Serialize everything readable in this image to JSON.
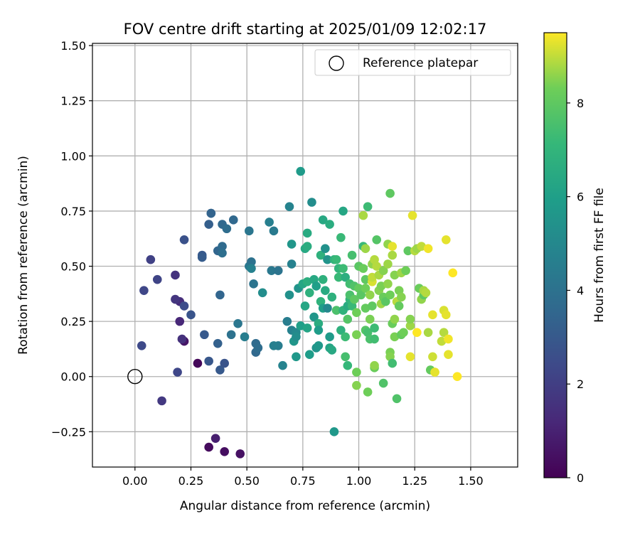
{
  "chart_data": {
    "type": "scatter",
    "title": "FOV centre drift starting at 2025/01/09 12:02:17",
    "xlabel": "Angular distance from reference (arcmin)",
    "ylabel": "Rotation from reference (arcmin)",
    "xlim": [
      -0.19,
      1.71
    ],
    "ylim": [
      -0.41,
      1.51
    ],
    "xticks": [
      0.0,
      0.25,
      0.5,
      0.75,
      1.0,
      1.25,
      1.5
    ],
    "xtick_labels": [
      "0.00",
      "0.25",
      "0.50",
      "0.75",
      "1.00",
      "1.25",
      "1.50"
    ],
    "yticks": [
      -0.25,
      0.0,
      0.25,
      0.5,
      0.75,
      1.0,
      1.25,
      1.5
    ],
    "ytick_labels": [
      "−0.25",
      "0.00",
      "0.25",
      "0.50",
      "0.75",
      "1.00",
      "1.25",
      "1.50"
    ],
    "grid": true,
    "legend": {
      "position": "top-right",
      "entries": [
        "Reference platepar"
      ]
    },
    "reference_point": {
      "x": 0.0,
      "y": 0.0
    },
    "colorbar": {
      "label": "Hours from first FF file",
      "range": [
        0,
        9.5
      ],
      "ticks": [
        0,
        2,
        4,
        6,
        8
      ],
      "tick_labels": [
        "0",
        "2",
        "4",
        "6",
        "8"
      ],
      "colormap": "viridis"
    },
    "points": [
      [
        0.28,
        0.06,
        0.2
      ],
      [
        0.33,
        -0.32,
        0.3
      ],
      [
        0.4,
        -0.34,
        0.4
      ],
      [
        0.47,
        -0.35,
        0.5
      ],
      [
        0.36,
        -0.28,
        0.9
      ],
      [
        0.22,
        0.16,
        0.6
      ],
      [
        0.2,
        0.25,
        1.2
      ],
      [
        0.21,
        0.17,
        1.5
      ],
      [
        0.12,
        -0.11,
        1.8
      ],
      [
        0.18,
        0.46,
        1.6
      ],
      [
        0.2,
        0.34,
        1.4
      ],
      [
        0.18,
        0.35,
        1.7
      ],
      [
        0.07,
        0.53,
        2.1
      ],
      [
        0.1,
        0.44,
        2.2
      ],
      [
        0.04,
        0.39,
        2.3
      ],
      [
        0.03,
        0.14,
        2.4
      ],
      [
        0.19,
        0.02,
        2.3
      ],
      [
        0.22,
        0.32,
        2.5
      ],
      [
        0.22,
        0.62,
        2.7
      ],
      [
        0.25,
        0.28,
        2.8
      ],
      [
        0.3,
        0.55,
        3.0
      ],
      [
        0.3,
        0.54,
        3.1
      ],
      [
        0.33,
        0.69,
        3.2
      ],
      [
        0.34,
        0.74,
        3.3
      ],
      [
        0.34,
        0.74,
        3.4
      ],
      [
        0.37,
        0.57,
        3.5
      ],
      [
        0.39,
        0.69,
        3.6
      ],
      [
        0.39,
        0.59,
        3.7
      ],
      [
        0.41,
        0.67,
        3.8
      ],
      [
        0.44,
        0.71,
        3.6
      ],
      [
        0.38,
        0.37,
        3.5
      ],
      [
        0.37,
        0.15,
        3.3
      ],
      [
        0.31,
        0.19,
        3.0
      ],
      [
        0.33,
        0.07,
        2.9
      ],
      [
        0.38,
        0.03,
        3.0
      ],
      [
        0.4,
        0.06,
        2.8
      ],
      [
        0.39,
        0.56,
        3.9
      ],
      [
        0.43,
        0.19,
        4.0
      ],
      [
        0.46,
        0.24,
        4.2
      ],
      [
        0.49,
        0.18,
        4.5
      ],
      [
        0.51,
        0.5,
        4.3
      ],
      [
        0.52,
        0.52,
        4.0
      ],
      [
        0.51,
        0.66,
        4.2
      ],
      [
        0.53,
        0.42,
        4.1
      ],
      [
        0.54,
        0.11,
        3.6
      ],
      [
        0.54,
        0.15,
        3.7
      ],
      [
        0.55,
        0.13,
        3.8
      ],
      [
        0.52,
        0.49,
        4.7
      ],
      [
        0.57,
        0.38,
        5.2
      ],
      [
        0.6,
        0.7,
        4.6
      ],
      [
        0.61,
        0.48,
        4.3
      ],
      [
        0.62,
        0.66,
        4.4
      ],
      [
        0.64,
        0.48,
        4.1
      ],
      [
        0.64,
        0.14,
        4.5
      ],
      [
        0.62,
        0.14,
        4.6
      ],
      [
        0.66,
        0.05,
        4.8
      ],
      [
        0.68,
        0.25,
        4.5
      ],
      [
        0.69,
        0.37,
        5.4
      ],
      [
        0.69,
        0.77,
        4.8
      ],
      [
        0.7,
        0.21,
        4.7
      ],
      [
        0.7,
        0.6,
        5.6
      ],
      [
        0.7,
        0.51,
        4.7
      ],
      [
        0.71,
        0.16,
        5.6
      ],
      [
        0.72,
        0.09,
        5.7
      ],
      [
        0.72,
        0.2,
        5.0
      ],
      [
        0.72,
        0.18,
        5.2
      ],
      [
        0.73,
        0.4,
        5.5
      ],
      [
        0.74,
        0.93,
        5.8
      ],
      [
        0.74,
        0.23,
        6.0
      ],
      [
        0.75,
        0.42,
        6.3
      ],
      [
        0.76,
        0.58,
        6.4
      ],
      [
        0.77,
        0.65,
        6.5
      ],
      [
        0.77,
        0.59,
        6.6
      ],
      [
        0.77,
        0.43,
        6.7
      ],
      [
        0.78,
        0.38,
        6.8
      ],
      [
        0.76,
        0.32,
        6.3
      ],
      [
        0.77,
        0.22,
        6.2
      ],
      [
        0.78,
        0.1,
        5.9
      ],
      [
        0.79,
        0.79,
        5.2
      ],
      [
        0.8,
        0.44,
        6.4
      ],
      [
        0.8,
        0.27,
        5.6
      ],
      [
        0.81,
        0.13,
        5.5
      ],
      [
        0.82,
        0.14,
        5.7
      ],
      [
        0.81,
        0.41,
        6.0
      ],
      [
        0.82,
        0.24,
        6.6
      ],
      [
        0.82,
        0.21,
        5.9
      ],
      [
        0.83,
        0.55,
        6.8
      ],
      [
        0.83,
        0.34,
        6.9
      ],
      [
        0.84,
        0.71,
        6.4
      ],
      [
        0.84,
        0.31,
        6.0
      ],
      [
        0.84,
        0.44,
        6.8
      ],
      [
        0.85,
        0.58,
        5.4
      ],
      [
        0.86,
        0.53,
        5.5
      ],
      [
        0.85,
        0.39,
        6.5
      ],
      [
        0.86,
        0.31,
        5.0
      ],
      [
        0.87,
        0.18,
        5.8
      ],
      [
        0.87,
        0.69,
        6.6
      ],
      [
        0.87,
        0.13,
        6.2
      ],
      [
        0.88,
        0.12,
        6.4
      ],
      [
        0.88,
        0.36,
        6.8
      ],
      [
        0.89,
        -0.25,
        5.7
      ],
      [
        0.89,
        0.53,
        6.9
      ],
      [
        0.9,
        0.53,
        7.2
      ],
      [
        0.9,
        0.3,
        7.6
      ],
      [
        0.91,
        0.49,
        7.0
      ],
      [
        0.91,
        0.45,
        7.2
      ],
      [
        0.92,
        0.21,
        6.8
      ],
      [
        0.92,
        0.63,
        7.2
      ],
      [
        0.93,
        0.75,
        6.3
      ],
      [
        0.93,
        0.49,
        7.3
      ],
      [
        0.93,
        0.3,
        6.9
      ],
      [
        0.94,
        0.18,
        7.3
      ],
      [
        0.94,
        0.09,
        7.5
      ],
      [
        0.94,
        0.45,
        6.7
      ],
      [
        0.95,
        0.05,
        7.1
      ],
      [
        0.95,
        0.32,
        6.5
      ],
      [
        0.95,
        0.26,
        7.8
      ],
      [
        0.96,
        0.35,
        7.0
      ],
      [
        0.96,
        0.42,
        7.4
      ],
      [
        0.96,
        0.37,
        7.6
      ],
      [
        0.97,
        0.55,
        7.5
      ],
      [
        0.97,
        0.32,
        7.2
      ],
      [
        0.98,
        0.41,
        7.7
      ],
      [
        0.98,
        0.35,
        8.0
      ],
      [
        0.99,
        0.19,
        8.4
      ],
      [
        0.99,
        0.29,
        8.3
      ],
      [
        0.99,
        -0.04,
        8.5
      ],
      [
        0.99,
        0.02,
        8.3
      ],
      [
        1.0,
        0.5,
        7.9
      ],
      [
        1.0,
        0.4,
        8.1
      ],
      [
        1.01,
        0.37,
        7.9
      ],
      [
        1.02,
        0.59,
        7.2
      ],
      [
        1.02,
        0.49,
        8.2
      ],
      [
        1.02,
        0.73,
        8.8
      ],
      [
        1.03,
        0.58,
        8.7
      ],
      [
        1.03,
        0.44,
        8.0
      ],
      [
        1.03,
        0.4,
        8.3
      ],
      [
        1.03,
        0.31,
        8.1
      ],
      [
        1.03,
        0.21,
        7.8
      ],
      [
        1.04,
        0.77,
        7.3
      ],
      [
        1.04,
        0.2,
        7.5
      ],
      [
        1.04,
        -0.07,
        8.3
      ],
      [
        1.05,
        0.26,
        8.4
      ],
      [
        1.05,
        0.17,
        7.6
      ],
      [
        1.05,
        0.37,
        8.6
      ],
      [
        1.06,
        0.43,
        9.2
      ],
      [
        1.06,
        0.45,
        9.0
      ],
      [
        1.06,
        0.51,
        8.6
      ],
      [
        1.06,
        0.32,
        8.0
      ],
      [
        1.07,
        0.53,
        8.9
      ],
      [
        1.07,
        0.04,
        8.2
      ],
      [
        1.07,
        0.05,
        8.6
      ],
      [
        1.07,
        0.17,
        7.4
      ],
      [
        1.07,
        0.22,
        7.3
      ],
      [
        1.08,
        0.5,
        8.9
      ],
      [
        1.08,
        0.62,
        7.8
      ],
      [
        1.09,
        0.46,
        8.8
      ],
      [
        1.09,
        0.39,
        8.5
      ],
      [
        1.1,
        0.41,
        8.4
      ],
      [
        1.1,
        0.33,
        8.7
      ],
      [
        1.11,
        0.36,
        8.2
      ],
      [
        1.11,
        -0.03,
        7.7
      ],
      [
        1.11,
        0.48,
        8.5
      ],
      [
        1.12,
        0.34,
        7.9
      ],
      [
        1.13,
        0.6,
        8.6
      ],
      [
        1.13,
        0.51,
        8.7
      ],
      [
        1.13,
        0.42,
        8.6
      ],
      [
        1.14,
        0.37,
        8.3
      ],
      [
        1.14,
        0.11,
        8.4
      ],
      [
        1.14,
        0.09,
        8.5
      ],
      [
        1.14,
        0.83,
        8.0
      ],
      [
        1.15,
        0.59,
        9.3
      ],
      [
        1.15,
        0.55,
        8.8
      ],
      [
        1.15,
        0.24,
        8.2
      ],
      [
        1.15,
        0.06,
        7.4
      ],
      [
        1.16,
        0.46,
        8.5
      ],
      [
        1.16,
        0.26,
        8.6
      ],
      [
        1.16,
        0.18,
        8.4
      ],
      [
        1.17,
        0.34,
        8.9
      ],
      [
        1.17,
        -0.1,
        7.7
      ],
      [
        1.18,
        0.32,
        8.1
      ],
      [
        1.18,
        0.39,
        8.4
      ],
      [
        1.19,
        0.47,
        8.7
      ],
      [
        1.19,
        0.36,
        8.5
      ],
      [
        1.19,
        0.19,
        8.1
      ],
      [
        1.2,
        0.2,
        8.3
      ],
      [
        1.21,
        0.48,
        8.3
      ],
      [
        1.22,
        0.57,
        8.0
      ],
      [
        1.23,
        0.23,
        8.7
      ],
      [
        1.23,
        0.26,
        8.5
      ],
      [
        1.23,
        0.09,
        9.3
      ],
      [
        1.24,
        0.73,
        9.3
      ],
      [
        1.25,
        0.57,
        8.9
      ],
      [
        1.26,
        0.58,
        8.7
      ],
      [
        1.26,
        0.2,
        9.5
      ],
      [
        1.27,
        0.4,
        8.2
      ],
      [
        1.28,
        0.59,
        9.0
      ],
      [
        1.28,
        0.35,
        8.6
      ],
      [
        1.29,
        0.37,
        8.0
      ],
      [
        1.29,
        0.39,
        8.8
      ],
      [
        1.3,
        0.38,
        8.9
      ],
      [
        1.31,
        0.58,
        9.4
      ],
      [
        1.31,
        0.2,
        8.8
      ],
      [
        1.32,
        0.03,
        8.1
      ],
      [
        1.33,
        0.28,
        9.3
      ],
      [
        1.33,
        0.09,
        9.1
      ],
      [
        1.34,
        0.02,
        9.5
      ],
      [
        1.34,
        0.02,
        9.3
      ],
      [
        1.37,
        0.16,
        9.0
      ],
      [
        1.38,
        0.3,
        9.2
      ],
      [
        1.38,
        0.2,
        8.9
      ],
      [
        1.39,
        0.28,
        9.3
      ],
      [
        1.39,
        0.62,
        9.3
      ],
      [
        1.4,
        0.1,
        9.3
      ],
      [
        1.4,
        0.17,
        9.4
      ],
      [
        1.42,
        0.47,
        9.5
      ],
      [
        1.44,
        0.0,
        9.5
      ]
    ]
  }
}
